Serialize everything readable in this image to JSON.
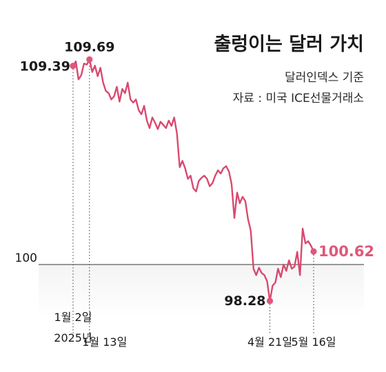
{
  "colors": {
    "line": "#d9496f",
    "accent": "#e0577a",
    "text": "#1a1a1a",
    "ref_line": "#333333",
    "shade_top": "#f4f4f4",
    "shade_bottom": "#ffffff"
  },
  "title": "출렁이는 달러 가치",
  "subtitle": "달러인덱스 기준",
  "source": "자료 : 미국 ICE선물거래소",
  "chart_data": {
    "type": "line",
    "title": "출렁이는 달러 가치",
    "subtitle": "달러인덱스 기준",
    "source": "자료 : 미국 ICE선물거래소",
    "ylim": [
      97.2,
      111.2
    ],
    "reference_line": {
      "value": 100,
      "label": "100"
    },
    "grid": false,
    "series": [
      {
        "values": [
          109.39,
          109.6,
          108.75,
          108.95,
          109.5,
          109.45,
          109.69,
          109.1,
          109.4,
          108.9,
          109.3,
          108.6,
          108.2,
          108.1,
          107.8,
          107.95,
          108.4,
          107.7,
          108.3,
          108.1,
          108.6,
          107.8,
          107.65,
          107.8,
          107.3,
          107.1,
          107.5,
          106.8,
          106.45,
          106.95,
          106.7,
          106.4,
          106.75,
          106.6,
          106.45,
          106.8,
          106.55,
          106.95,
          106.2,
          104.6,
          104.9,
          104.55,
          104.05,
          104.2,
          103.6,
          103.45,
          103.95,
          104.1,
          104.2,
          104.05,
          103.7,
          103.85,
          104.2,
          104.45,
          104.3,
          104.55,
          104.65,
          104.4,
          103.8,
          102.2,
          103.4,
          102.9,
          103.2,
          103.0,
          102.15,
          101.6,
          99.8,
          99.5,
          99.85,
          99.6,
          99.5,
          99.2,
          98.28,
          99.0,
          99.15,
          99.8,
          99.4,
          100.0,
          99.7,
          100.2,
          99.8,
          99.9,
          100.6,
          99.5,
          101.7,
          101.0,
          101.1,
          100.9,
          100.62
        ]
      }
    ],
    "annotations": [
      {
        "index": 0,
        "value_label": "109.39",
        "date_label": [
          "1월 2일",
          "2025년"
        ]
      },
      {
        "index": 6,
        "value_label": "109.69",
        "date_label": [
          "1월 13일"
        ]
      },
      {
        "index": 72,
        "value_label": "98.28",
        "date_label": [
          "4월 21일"
        ]
      },
      {
        "index": 88,
        "value_label": "100.62",
        "date_label": [
          "5월 16일"
        ]
      }
    ]
  }
}
